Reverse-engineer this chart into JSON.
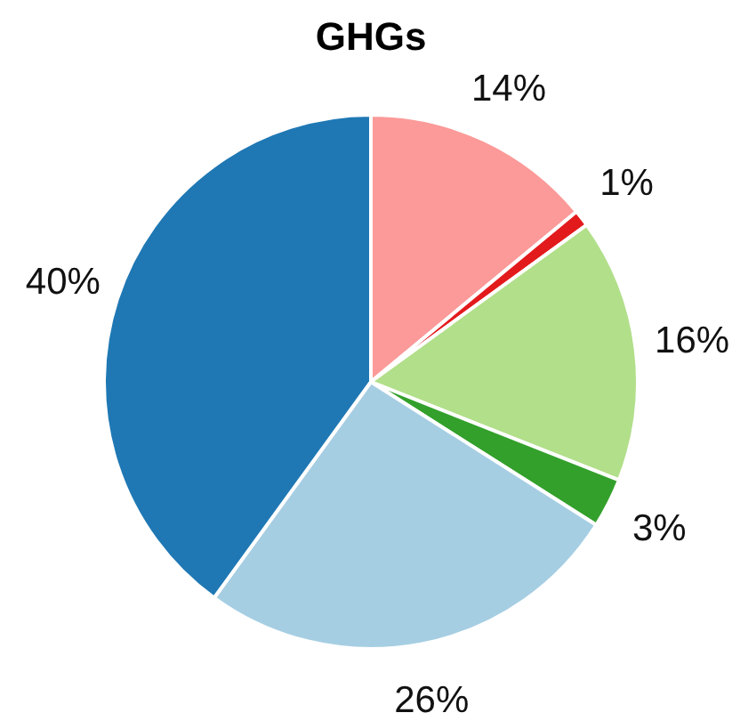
{
  "chart_data": {
    "type": "pie",
    "title": "GHGs",
    "categories": [
      null,
      null,
      null,
      null,
      null,
      null
    ],
    "values": [
      14,
      1,
      16,
      3,
      26,
      40
    ],
    "colors": [
      "#fb9a99",
      "#e31a1c",
      "#b2df8a",
      "#33a02c",
      "#a6cee3",
      "#1f78b4"
    ],
    "value_labels": [
      "14%",
      "1%",
      "16%",
      "3%",
      "26%",
      "40%"
    ]
  }
}
